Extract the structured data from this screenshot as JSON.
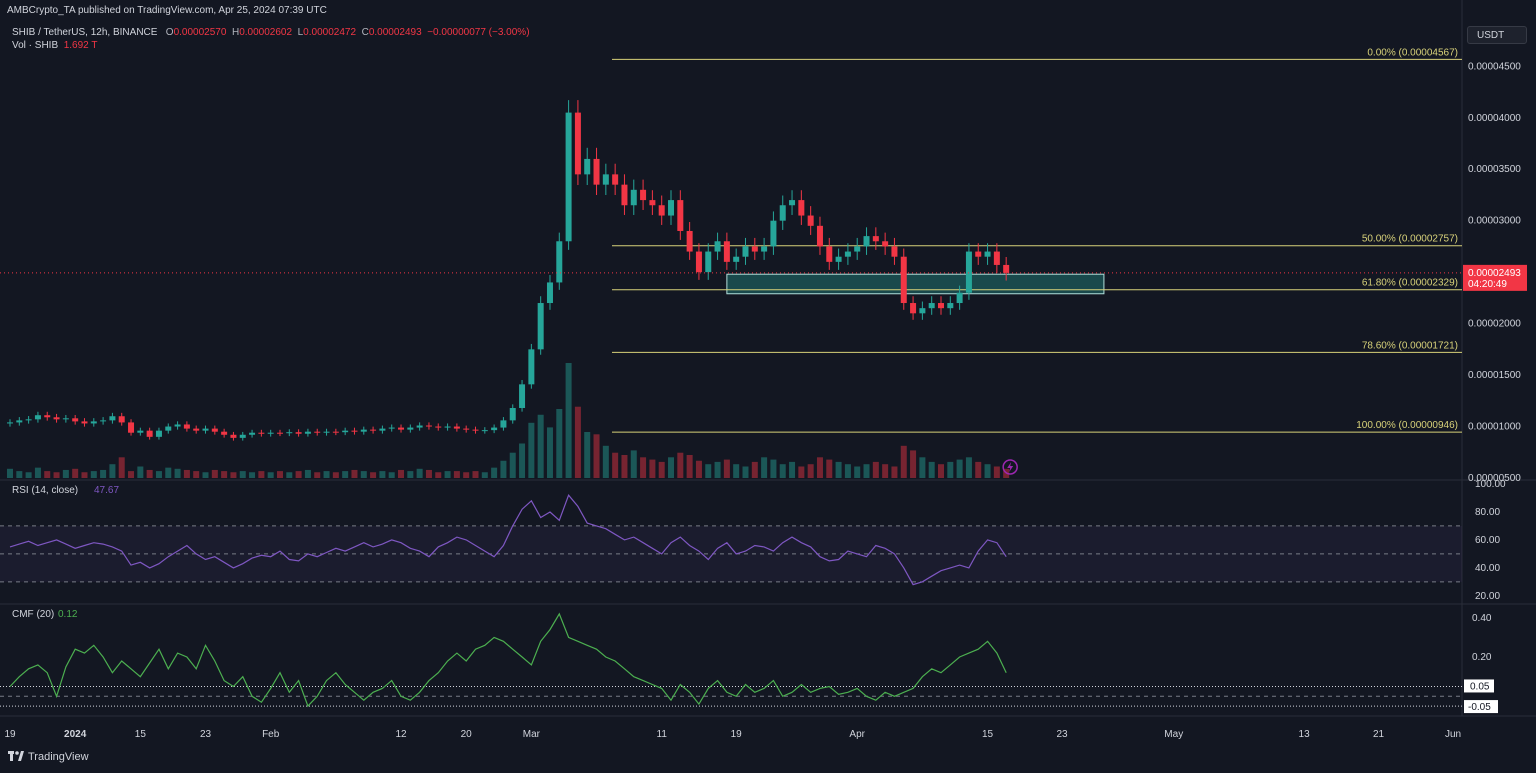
{
  "header": {
    "published": "AMBCrypto_TA published on TradingView.com, Apr 25, 2024 07:39 UTC",
    "symbol": "SHIB / TetherUS, 12h, BINANCE",
    "o_label": "O",
    "o": "0.00002570",
    "h_label": "H",
    "h": "0.00002602",
    "l_label": "L",
    "l": "0.00002472",
    "c_label": "C",
    "c": "0.00002493",
    "change": "−0.00000077 (−3.00%)",
    "vol_label": "Vol · SHIB",
    "vol": "1.692 T"
  },
  "currency_button": "USDT",
  "footer": {
    "brand": "TradingView",
    "logo_icon": "tradingview-logo-icon"
  },
  "colors": {
    "bg": "#131722",
    "up": "#26a69a",
    "down": "#f23645",
    "fib": "#d8d27a",
    "rsi": "#7e57c2",
    "cmf": "#4caf50",
    "zone": "#26a69a"
  },
  "chart_data": [
    {
      "type": "candlestick",
      "symbol": "SHIB / TetherUS",
      "interval": "12h",
      "ylim": [
        5e-06,
        4.6e-05
      ],
      "y_ticks": [
        "0.00004500",
        "0.00004000",
        "0.00003500",
        "0.00003000",
        "0.00002500",
        "0.00002000",
        "0.00001500",
        "0.00001000",
        "0.00000500"
      ],
      "y_tick_values": [
        4.5e-05,
        4e-05,
        3.5e-05,
        3e-05,
        2.5e-05,
        2e-05,
        1.5e-05,
        1e-05,
        5e-06
      ],
      "x_ticks": [
        "19",
        "2024",
        "15",
        "23",
        "Feb",
        "12",
        "20",
        "Mar",
        "11",
        "19",
        "Apr",
        "15",
        "23",
        "May",
        "13",
        "21",
        "Jun"
      ],
      "x_tick_positions": [
        0,
        7,
        14,
        21,
        28,
        42,
        49,
        56,
        70,
        78,
        91,
        105,
        113,
        125,
        139,
        147,
        155
      ],
      "last_price": {
        "value": 2.493e-05,
        "label": "0.00002493",
        "countdown": "04:20:49"
      },
      "fib_levels": [
        {
          "label": "0.00% (0.00004567)",
          "value": 4.567e-05
        },
        {
          "label": "50.00% (0.00002757)",
          "value": 2.757e-05
        },
        {
          "label": "61.80% (0.00002329)",
          "value": 2.329e-05
        },
        {
          "label": "78.60% (0.00001721)",
          "value": 1.721e-05
        },
        {
          "label": "100.00% (0.00000946)",
          "value": 9.46e-06
        }
      ],
      "zone": {
        "x0": 77,
        "x1": 117.5,
        "y0": 2.29e-05,
        "y1": 2.48e-05
      },
      "events_icon": "lightning-icon",
      "days": [
        {
          "d": 0,
          "o": 1.03e-05,
          "c": 1.04e-05
        },
        {
          "d": 1,
          "o": 1.04e-05,
          "c": 1.06e-05
        },
        {
          "d": 2,
          "o": 1.06e-05,
          "c": 1.07e-05
        },
        {
          "d": 3,
          "o": 1.07e-05,
          "c": 1.11e-05
        },
        {
          "d": 4,
          "o": 1.11e-05,
          "c": 1.09e-05
        },
        {
          "d": 5,
          "o": 1.09e-05,
          "c": 1.07e-05
        },
        {
          "d": 6,
          "o": 1.07e-05,
          "c": 1.08e-05
        },
        {
          "d": 7,
          "o": 1.08e-05,
          "c": 1.05e-05
        },
        {
          "d": 8,
          "o": 1.05e-05,
          "c": 1.03e-05
        },
        {
          "d": 9,
          "o": 1.03e-05,
          "c": 1.05e-05
        },
        {
          "d": 10,
          "o": 1.05e-05,
          "c": 1.06e-05
        },
        {
          "d": 11,
          "o": 1.06e-05,
          "c": 1.1e-05
        },
        {
          "d": 12,
          "o": 1.1e-05,
          "c": 1.04e-05
        },
        {
          "d": 13,
          "o": 1.04e-05,
          "c": 9.4e-06
        },
        {
          "d": 14,
          "o": 9.4e-06,
          "c": 9.6e-06
        },
        {
          "d": 15,
          "o": 9.6e-06,
          "c": 9e-06
        },
        {
          "d": 16,
          "o": 9e-06,
          "c": 9.6e-06
        },
        {
          "d": 17,
          "o": 9.6e-06,
          "c": 1e-05
        },
        {
          "d": 18,
          "o": 1e-05,
          "c": 1.02e-05
        },
        {
          "d": 19,
          "o": 1.02e-05,
          "c": 9.8e-06
        },
        {
          "d": 20,
          "o": 9.8e-06,
          "c": 9.6e-06
        },
        {
          "d": 21,
          "o": 9.6e-06,
          "c": 9.8e-06
        },
        {
          "d": 22,
          "o": 9.8e-06,
          "c": 9.5e-06
        },
        {
          "d": 23,
          "o": 9.5e-06,
          "c": 9.2e-06
        },
        {
          "d": 24,
          "o": 9.2e-06,
          "c": 8.9e-06
        },
        {
          "d": 25,
          "o": 8.9e-06,
          "c": 9.2e-06
        },
        {
          "d": 26,
          "o": 9.2e-06,
          "c": 9.4e-06
        },
        {
          "d": 27,
          "o": 9.4e-06,
          "c": 9.3e-06
        },
        {
          "d": 28,
          "o": 9.3e-06,
          "c": 9.4e-06
        },
        {
          "d": 29,
          "o": 9.4e-06,
          "c": 9.35e-06
        },
        {
          "d": 30,
          "o": 9.35e-06,
          "c": 9.45e-06
        },
        {
          "d": 31,
          "o": 9.45e-06,
          "c": 9.3e-06
        },
        {
          "d": 32,
          "o": 9.3e-06,
          "c": 9.5e-06
        },
        {
          "d": 33,
          "o": 9.5e-06,
          "c": 9.4e-06
        },
        {
          "d": 34,
          "o": 9.4e-06,
          "c": 9.5e-06
        },
        {
          "d": 35,
          "o": 9.5e-06,
          "c": 9.45e-06
        },
        {
          "d": 36,
          "o": 9.45e-06,
          "c": 9.6e-06
        },
        {
          "d": 37,
          "o": 9.6e-06,
          "c": 9.5e-06
        },
        {
          "d": 38,
          "o": 9.5e-06,
          "c": 9.7e-06
        },
        {
          "d": 39,
          "o": 9.7e-06,
          "c": 9.6e-06
        },
        {
          "d": 40,
          "o": 9.6e-06,
          "c": 9.8e-06
        },
        {
          "d": 41,
          "o": 9.8e-06,
          "c": 9.9e-06
        },
        {
          "d": 42,
          "o": 9.9e-06,
          "c": 9.7e-06
        },
        {
          "d": 43,
          "o": 9.7e-06,
          "c": 9.9e-06
        },
        {
          "d": 44,
          "o": 9.9e-06,
          "c": 1.01e-05
        },
        {
          "d": 45,
          "o": 1.01e-05,
          "c": 1e-05
        },
        {
          "d": 46,
          "o": 1e-05,
          "c": 9.9e-06
        },
        {
          "d": 47,
          "o": 9.9e-06,
          "c": 1e-05
        },
        {
          "d": 48,
          "o": 1e-05,
          "c": 9.8e-06
        },
        {
          "d": 49,
          "o": 9.8e-06,
          "c": 9.7e-06
        },
        {
          "d": 50,
          "o": 9.7e-06,
          "c": 9.6e-06
        },
        {
          "d": 51,
          "o": 9.6e-06,
          "c": 9.65e-06
        },
        {
          "d": 52,
          "o": 9.65e-06,
          "c": 9.9e-06
        },
        {
          "d": 53,
          "o": 9.9e-06,
          "c": 1.06e-05
        },
        {
          "d": 54,
          "o": 1.06e-05,
          "c": 1.18e-05
        },
        {
          "d": 55,
          "o": 1.18e-05,
          "c": 1.41e-05
        },
        {
          "d": 56,
          "o": 1.41e-05,
          "c": 1.75e-05
        },
        {
          "d": 57,
          "o": 1.75e-05,
          "c": 2.2e-05
        },
        {
          "d": 58,
          "o": 2.2e-05,
          "c": 2.4e-05
        },
        {
          "d": 59,
          "o": 2.4e-05,
          "c": 2.8e-05
        },
        {
          "d": 60,
          "o": 2.8e-05,
          "c": 4.05e-05
        },
        {
          "d": 61,
          "o": 4.05e-05,
          "c": 3.45e-05
        },
        {
          "d": 62,
          "o": 3.45e-05,
          "c": 3.6e-05
        },
        {
          "d": 63,
          "o": 3.6e-05,
          "c": 3.35e-05
        },
        {
          "d": 64,
          "o": 3.35e-05,
          "c": 3.45e-05
        },
        {
          "d": 65,
          "o": 3.45e-05,
          "c": 3.35e-05
        },
        {
          "d": 66,
          "o": 3.35e-05,
          "c": 3.15e-05
        },
        {
          "d": 67,
          "o": 3.15e-05,
          "c": 3.3e-05
        },
        {
          "d": 68,
          "o": 3.3e-05,
          "c": 3.2e-05
        },
        {
          "d": 69,
          "o": 3.2e-05,
          "c": 3.15e-05
        },
        {
          "d": 70,
          "o": 3.15e-05,
          "c": 3.05e-05
        },
        {
          "d": 71,
          "o": 3.05e-05,
          "c": 3.2e-05
        },
        {
          "d": 72,
          "o": 3.2e-05,
          "c": 2.9e-05
        },
        {
          "d": 73,
          "o": 2.9e-05,
          "c": 2.7e-05
        },
        {
          "d": 74,
          "o": 2.7e-05,
          "c": 2.5e-05
        },
        {
          "d": 75,
          "o": 2.5e-05,
          "c": 2.7e-05
        },
        {
          "d": 76,
          "o": 2.7e-05,
          "c": 2.8e-05
        },
        {
          "d": 77,
          "o": 2.8e-05,
          "c": 2.6e-05
        },
        {
          "d": 78,
          "o": 2.6e-05,
          "c": 2.65e-05
        },
        {
          "d": 79,
          "o": 2.65e-05,
          "c": 2.75e-05
        },
        {
          "d": 80,
          "o": 2.75e-05,
          "c": 2.7e-05
        },
        {
          "d": 81,
          "o": 2.7e-05,
          "c": 2.75e-05
        },
        {
          "d": 82,
          "o": 2.75e-05,
          "c": 3e-05
        },
        {
          "d": 83,
          "o": 3e-05,
          "c": 3.15e-05
        },
        {
          "d": 84,
          "o": 3.15e-05,
          "c": 3.2e-05
        },
        {
          "d": 85,
          "o": 3.2e-05,
          "c": 3.05e-05
        },
        {
          "d": 86,
          "o": 3.05e-05,
          "c": 2.95e-05
        },
        {
          "d": 87,
          "o": 2.95e-05,
          "c": 2.75e-05
        },
        {
          "d": 88,
          "o": 2.75e-05,
          "c": 2.6e-05
        },
        {
          "d": 89,
          "o": 2.6e-05,
          "c": 2.65e-05
        },
        {
          "d": 90,
          "o": 2.65e-05,
          "c": 2.7e-05
        },
        {
          "d": 91,
          "o": 2.7e-05,
          "c": 2.75e-05
        },
        {
          "d": 92,
          "o": 2.75e-05,
          "c": 2.85e-05
        },
        {
          "d": 93,
          "o": 2.85e-05,
          "c": 2.8e-05
        },
        {
          "d": 94,
          "o": 2.8e-05,
          "c": 2.75e-05
        },
        {
          "d": 95,
          "o": 2.75e-05,
          "c": 2.65e-05
        },
        {
          "d": 96,
          "o": 2.65e-05,
          "c": 2.2e-05
        },
        {
          "d": 97,
          "o": 2.2e-05,
          "c": 2.1e-05
        },
        {
          "d": 98,
          "o": 2.1e-05,
          "c": 2.15e-05
        },
        {
          "d": 99,
          "o": 2.15e-05,
          "c": 2.2e-05
        },
        {
          "d": 100,
          "o": 2.2e-05,
          "c": 2.15e-05
        },
        {
          "d": 101,
          "o": 2.15e-05,
          "c": 2.2e-05
        },
        {
          "d": 102,
          "o": 2.2e-05,
          "c": 2.3e-05
        },
        {
          "d": 103,
          "o": 2.3e-05,
          "c": 2.7e-05
        },
        {
          "d": 104,
          "o": 2.7e-05,
          "c": 2.65e-05
        },
        {
          "d": 105,
          "o": 2.65e-05,
          "c": 2.7e-05
        },
        {
          "d": 106,
          "o": 2.7e-05,
          "c": 2.57e-05
        },
        {
          "d": 107,
          "o": 2.57e-05,
          "c": 2.493e-05
        }
      ],
      "volume": [
        8,
        6,
        5,
        9,
        6,
        5,
        7,
        8,
        5,
        6,
        7,
        12,
        18,
        6,
        10,
        7,
        6,
        9,
        8,
        7,
        6,
        5,
        7,
        6,
        5,
        6,
        5,
        6,
        5,
        6,
        5,
        6,
        7,
        5,
        6,
        5,
        6,
        7,
        6,
        5,
        6,
        5,
        7,
        6,
        8,
        7,
        5,
        6,
        6,
        5,
        6,
        5,
        9,
        15,
        22,
        30,
        48,
        55,
        44,
        60,
        100,
        62,
        40,
        38,
        28,
        22,
        20,
        24,
        18,
        16,
        14,
        18,
        22,
        20,
        15,
        12,
        14,
        16,
        12,
        10,
        14,
        18,
        16,
        12,
        14,
        10,
        12,
        18,
        16,
        14,
        12,
        10,
        12,
        14,
        12,
        10,
        28,
        24,
        18,
        14,
        12,
        14,
        16,
        18,
        14,
        12,
        10,
        8
      ]
    },
    {
      "type": "line",
      "title": "RSI (14, close)",
      "last_value": "47.67",
      "ylim": [
        17,
        100
      ],
      "y_ticks": [
        "100.00",
        "80.00",
        "60.00",
        "40.00",
        "20.00"
      ],
      "y_tick_values": [
        100,
        80,
        60,
        40,
        20
      ],
      "bands": [
        70,
        50,
        30
      ],
      "values": [
        55,
        57,
        59,
        56,
        58,
        60,
        57,
        54,
        56,
        58,
        57,
        55,
        52,
        42,
        44,
        40,
        43,
        48,
        52,
        56,
        50,
        46,
        48,
        44,
        40,
        43,
        47,
        49,
        48,
        52,
        46,
        45,
        50,
        48,
        51,
        54,
        52,
        55,
        58,
        55,
        57,
        60,
        58,
        54,
        52,
        48,
        55,
        58,
        62,
        60,
        56,
        52,
        48,
        56,
        70,
        82,
        88,
        76,
        80,
        74,
        92,
        84,
        72,
        70,
        68,
        64,
        60,
        62,
        58,
        54,
        50,
        58,
        62,
        56,
        52,
        46,
        54,
        58,
        50,
        52,
        56,
        55,
        52,
        58,
        62,
        58,
        55,
        48,
        45,
        46,
        52,
        50,
        48,
        56,
        54,
        50,
        40,
        28,
        30,
        34,
        38,
        40,
        42,
        40,
        52,
        60,
        58,
        48
      ]
    },
    {
      "type": "line",
      "title": "CMF (20)",
      "last_value": "0.12",
      "ylim": [
        -0.07,
        0.45
      ],
      "y_ticks": [
        "0.40",
        "0.20",
        "0.05",
        "-0.05"
      ],
      "y_tick_values": [
        0.4,
        0.2,
        0.05,
        -0.05
      ],
      "reference_lines": [
        0.05,
        0.0,
        -0.05
      ],
      "values": [
        0.05,
        0.1,
        0.14,
        0.16,
        0.12,
        0.0,
        0.15,
        0.24,
        0.22,
        0.26,
        0.2,
        0.12,
        0.18,
        0.14,
        0.1,
        0.17,
        0.24,
        0.14,
        0.22,
        0.2,
        0.14,
        0.26,
        0.18,
        0.08,
        0.05,
        0.1,
        0.0,
        -0.03,
        0.04,
        0.12,
        0.02,
        0.08,
        -0.05,
        0.0,
        0.08,
        0.12,
        0.06,
        0.02,
        -0.02,
        0.02,
        0.04,
        0.08,
        0.0,
        -0.02,
        0.02,
        0.08,
        0.12,
        0.18,
        0.22,
        0.18,
        0.24,
        0.26,
        0.3,
        0.28,
        0.24,
        0.2,
        0.16,
        0.28,
        0.34,
        0.42,
        0.3,
        0.28,
        0.26,
        0.24,
        0.2,
        0.18,
        0.14,
        0.1,
        0.08,
        0.06,
        0.04,
        -0.02,
        0.06,
        0.02,
        -0.04,
        0.04,
        0.08,
        0.02,
        0.0,
        0.06,
        0.02,
        0.04,
        0.08,
        0.0,
        0.02,
        0.06,
        0.02,
        0.04,
        0.05,
        0.01,
        0.02,
        0.04,
        0.0,
        -0.02,
        0.02,
        0.0,
        0.02,
        0.04,
        0.1,
        0.14,
        0.12,
        0.16,
        0.2,
        0.22,
        0.24,
        0.28,
        0.22,
        0.12
      ]
    }
  ]
}
